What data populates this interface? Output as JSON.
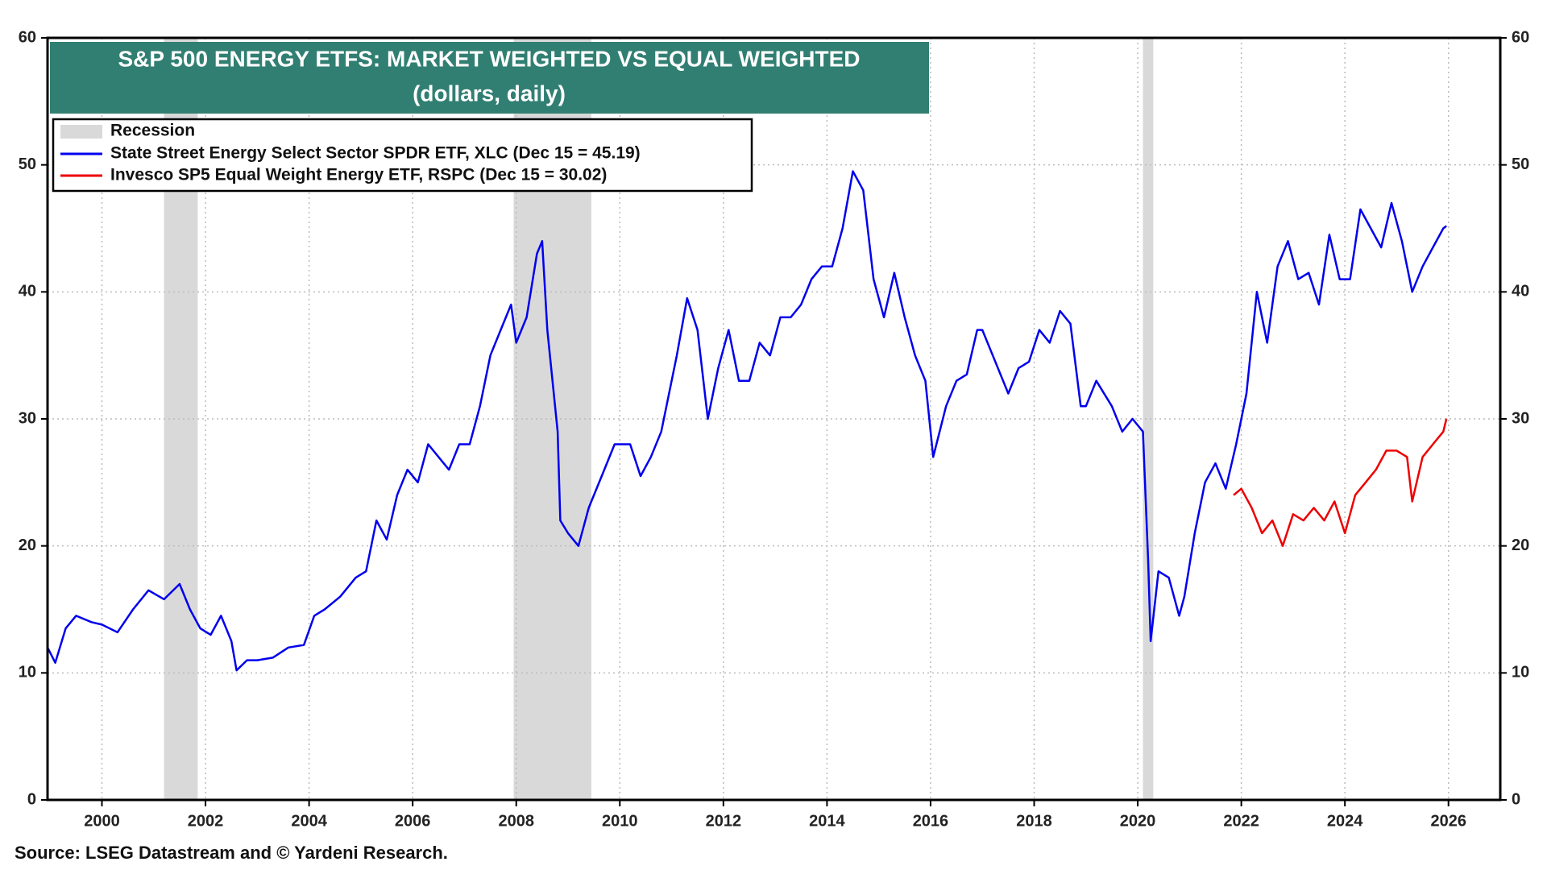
{
  "chart_data": {
    "type": "line",
    "title": "S&P 500 ENERGY ETFS: MARKET WEIGHTED VS EQUAL WEIGHTED",
    "subtitle": "(dollars, daily)",
    "source": "Source: LSEG Datastream and © Yardeni Research.",
    "recession_label": "Recession",
    "recession_color": "#d9d9d9",
    "recessions": [
      [
        2001.2,
        2001.85
      ],
      [
        2007.95,
        2009.45
      ],
      [
        2020.1,
        2020.3
      ]
    ],
    "xlim": [
      1998.95,
      2027.0
    ],
    "xticks": [
      2000,
      2002,
      2004,
      2006,
      2008,
      2010,
      2012,
      2014,
      2016,
      2018,
      2020,
      2022,
      2024,
      2026
    ],
    "ylim": [
      0,
      60
    ],
    "yticks": [
      0,
      10,
      20,
      30,
      40,
      50,
      60
    ],
    "y2lim": [
      0,
      60
    ],
    "y2ticks": [
      0,
      10,
      20,
      30,
      40,
      50,
      60
    ],
    "grid": true,
    "legend": "top-left",
    "series": [
      {
        "name": "State Street Energy Select Sector SPDR ETF, XLC (Dec 15 = 45.19)",
        "color": "#0000ee",
        "x": [
          1998.95,
          1999.1,
          1999.3,
          1999.5,
          1999.8,
          2000.0,
          2000.3,
          2000.6,
          2000.9,
          2001.2,
          2001.5,
          2001.7,
          2001.9,
          2002.1,
          2002.3,
          2002.5,
          2002.6,
          2002.8,
          2003.0,
          2003.3,
          2003.6,
          2003.9,
          2004.1,
          2004.3,
          2004.6,
          2004.9,
          2005.1,
          2005.3,
          2005.5,
          2005.7,
          2005.9,
          2006.1,
          2006.3,
          2006.5,
          2006.7,
          2006.9,
          2007.1,
          2007.3,
          2007.5,
          2007.7,
          2007.9,
          2008.0,
          2008.2,
          2008.4,
          2008.5,
          2008.6,
          2008.8,
          2008.85,
          2009.0,
          2009.2,
          2009.4,
          2009.7,
          2009.9,
          2010.2,
          2010.4,
          2010.6,
          2010.8,
          2011.1,
          2011.3,
          2011.5,
          2011.7,
          2011.9,
          2012.1,
          2012.3,
          2012.5,
          2012.7,
          2012.9,
          2013.1,
          2013.3,
          2013.5,
          2013.7,
          2013.9,
          2014.1,
          2014.3,
          2014.5,
          2014.7,
          2014.9,
          2015.1,
          2015.3,
          2015.5,
          2015.7,
          2015.9,
          2016.05,
          2016.3,
          2016.5,
          2016.7,
          2016.9,
          2017.0,
          2017.2,
          2017.5,
          2017.7,
          2017.9,
          2018.1,
          2018.3,
          2018.5,
          2018.7,
          2018.9,
          2019.0,
          2019.2,
          2019.5,
          2019.7,
          2019.9,
          2020.1,
          2020.2,
          2020.25,
          2020.4,
          2020.6,
          2020.8,
          2020.9,
          2021.1,
          2021.3,
          2021.5,
          2021.7,
          2021.9,
          2022.1,
          2022.3,
          2022.5,
          2022.7,
          2022.9,
          2023.1,
          2023.3,
          2023.5,
          2023.7,
          2023.9,
          2024.1,
          2024.3,
          2024.5,
          2024.7,
          2024.9,
          2025.1,
          2025.3,
          2025.5,
          2025.7,
          2025.9,
          2025.96
        ],
        "values": [
          12,
          10.8,
          13.5,
          14.5,
          14,
          13.8,
          13.2,
          15,
          16.5,
          15.8,
          17,
          15,
          13.5,
          13,
          14.5,
          12.5,
          10.2,
          11,
          11,
          11.2,
          12,
          12.2,
          14.5,
          15,
          16,
          17.5,
          18,
          22,
          20.5,
          24,
          26,
          25,
          28,
          27,
          26,
          28,
          28,
          31,
          35,
          37,
          39,
          36,
          38,
          43,
          44,
          37,
          29,
          22,
          21,
          20,
          23,
          26,
          28,
          28,
          25.5,
          27,
          29,
          35,
          39.5,
          37,
          30,
          34,
          37,
          33,
          33,
          36,
          35,
          38,
          38,
          39,
          41,
          42,
          42,
          45,
          49.5,
          48,
          41,
          38,
          41.5,
          38,
          35,
          33,
          27,
          31,
          33,
          33.5,
          37,
          37,
          35,
          32,
          34,
          34.5,
          37,
          36,
          38.5,
          37.5,
          31,
          31,
          33,
          31,
          29,
          30,
          29,
          19,
          12.5,
          18,
          17.5,
          14.5,
          16,
          21,
          25,
          26.5,
          24.5,
          28,
          32,
          40,
          36,
          42,
          44,
          41,
          41.5,
          39,
          44.5,
          41,
          41,
          46.5,
          45,
          43.5,
          47,
          44,
          40,
          42,
          43.5,
          45,
          45.19
        ]
      },
      {
        "name": "Invesco SP5 Equal Weight Energy ETF, RSPC (Dec 15 = 30.02)",
        "color": "#ee0000",
        "x": [
          2021.85,
          2022.0,
          2022.2,
          2022.4,
          2022.6,
          2022.8,
          2023.0,
          2023.2,
          2023.4,
          2023.6,
          2023.8,
          2024.0,
          2024.2,
          2024.4,
          2024.6,
          2024.8,
          2025.0,
          2025.2,
          2025.3,
          2025.5,
          2025.7,
          2025.9,
          2025.96
        ],
        "values": [
          24,
          24.5,
          23,
          21,
          22,
          20,
          22.5,
          22,
          23,
          22,
          23.5,
          21,
          24,
          25,
          26,
          27.5,
          27.5,
          27,
          23.5,
          27,
          28,
          29,
          30.02
        ]
      }
    ]
  }
}
